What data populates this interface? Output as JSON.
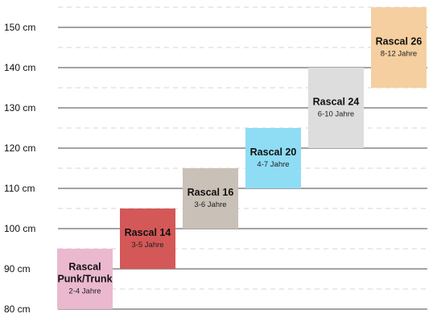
{
  "chart_data": {
    "type": "bar",
    "title": "",
    "xlabel": "",
    "ylabel": "",
    "y_ticks": [
      "80 cm",
      "90 cm",
      "100 cm",
      "110 cm",
      "120 cm",
      "130 cm",
      "140 cm",
      "150 cm"
    ],
    "ylim": [
      80,
      155
    ],
    "grid": "solid lines at every 10 cm, dashed lines at every 5 cm",
    "legend": "none",
    "unit": "cm",
    "bars": [
      {
        "name_lines": [
          "Rascal",
          "Punk/Trunk"
        ],
        "age": "2-4 Jahre",
        "min": 80,
        "max": 95,
        "color": "#ebb9cf"
      },
      {
        "name_lines": [
          "Rascal 14"
        ],
        "age": "3-5 Jahre",
        "min": 90,
        "max": 105,
        "color": "#d45858"
      },
      {
        "name_lines": [
          "Rascal 16"
        ],
        "age": "3-6 Jahre",
        "min": 100,
        "max": 115,
        "color": "#c9c0b7"
      },
      {
        "name_lines": [
          "Rascal 20"
        ],
        "age": "4-7 Jahre",
        "min": 110,
        "max": 125,
        "color": "#8fdcf5"
      },
      {
        "name_lines": [
          "Rascal 24"
        ],
        "age": "6-10 Jahre",
        "min": 120,
        "max": 140,
        "color": "#dddddd"
      },
      {
        "name_lines": [
          "Rascal 26"
        ],
        "age": "8-12 Jahre",
        "min": 135,
        "max": 155,
        "color": "#f5cfa0"
      }
    ]
  }
}
